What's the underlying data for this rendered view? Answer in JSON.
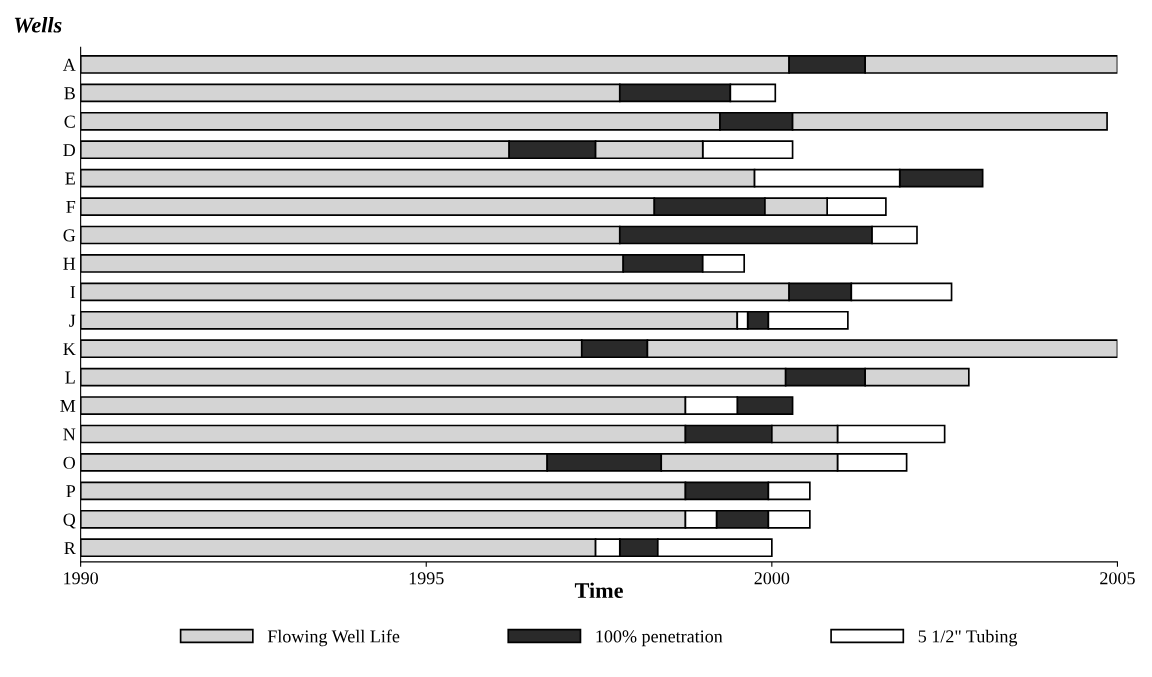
{
  "chart_data": {
    "type": "bar",
    "orientation": "horizontal",
    "ylabel": "Wells",
    "xlabel": "Time",
    "categories": [
      "A",
      "B",
      "C",
      "D",
      "E",
      "F",
      "G",
      "H",
      "I",
      "J",
      "K",
      "L",
      "M",
      "N",
      "O",
      "P",
      "Q",
      "R"
    ],
    "xlim": [
      1990,
      2005
    ],
    "xticks": [
      1990,
      1995,
      2000,
      2005
    ],
    "grid": false,
    "legend": "bottom",
    "series": [
      {
        "name": "Flowing Well Life",
        "color": "#d4d4d4",
        "base": [
          1990,
          1990,
          1990,
          1990,
          1990,
          1990,
          1990,
          1990,
          1990,
          1990,
          1990,
          1990,
          1990,
          1990,
          1990,
          1990,
          1990,
          1990
        ],
        "values": [
          10.25,
          7.8,
          9.25,
          6.2,
          9.75,
          8.3,
          7.8,
          7.85,
          10.25,
          9.5,
          7.25,
          10.2,
          8.75,
          8.75,
          6.75,
          8.75,
          8.75,
          7.45
        ]
      },
      {
        "name": "100% penetration",
        "color": "#2a2a2a",
        "base": [
          2000.25,
          1997.8,
          1999.25,
          1996.2,
          2001.85,
          1998.3,
          1997.8,
          1997.85,
          2000.25,
          1999.65,
          1997.25,
          2000.2,
          1999.5,
          1998.75,
          1996.75,
          1998.75,
          1999.2,
          1997.8
        ],
        "values": [
          1.1,
          1.6,
          1.05,
          1.25,
          1.2,
          1.6,
          3.65,
          1.15,
          0.9,
          0.3,
          0.95,
          1.15,
          0.8,
          1.25,
          1.65,
          1.2,
          0.75,
          0.55
        ]
      },
      {
        "name": "5 1/2\" Tubing",
        "color": "#ffffff",
        "base": [
          null,
          1999.4,
          null,
          1999.0,
          null,
          2000.8,
          2001.45,
          1999.0,
          2001.15,
          1999.95,
          null,
          null,
          null,
          2000.95,
          2000.95,
          1999.95,
          1999.95,
          1998.35
        ],
        "values": [
          null,
          0.65,
          null,
          1.3,
          null,
          0.85,
          0.65,
          0.6,
          1.45,
          1.15,
          null,
          null,
          null,
          1.55,
          1.0,
          0.6,
          0.6,
          1.65
        ]
      },
      {
        "color": "#d4d4d4",
        "base": [
          2001.35,
          null,
          2000.3,
          1997.45,
          null,
          1999.9,
          null,
          null,
          null,
          null,
          1998.2,
          2001.35,
          null,
          2000.0,
          1998.4,
          null,
          null,
          null
        ],
        "values": [
          3.65,
          null,
          4.55,
          1.55,
          null,
          0.9,
          null,
          null,
          null,
          null,
          6.8,
          1.5,
          null,
          0.95,
          2.55,
          null,
          null,
          null
        ]
      },
      {
        "color": "#ffffff",
        "base": [
          null,
          null,
          null,
          null,
          1999.75,
          null,
          null,
          null,
          null,
          1999.5,
          null,
          null,
          1998.75,
          null,
          null,
          null,
          1998.75,
          1997.45
        ],
        "values": [
          null,
          null,
          null,
          null,
          2.1,
          null,
          null,
          null,
          null,
          0.15,
          null,
          null,
          0.75,
          null,
          null,
          null,
          0.45,
          0.35
        ]
      }
    ]
  }
}
